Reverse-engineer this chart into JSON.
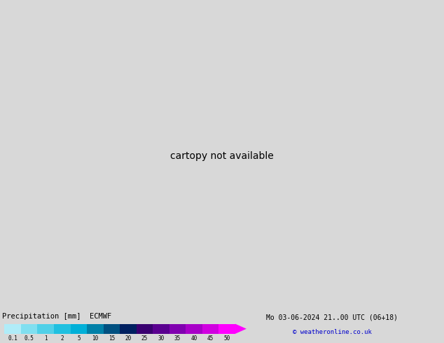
{
  "title": "Precipitation [mm]  ECMWF",
  "date_label": "Mo 03-06-2024 21..00 UTC (06+18)",
  "copyright": "© weatheronline.co.uk",
  "colorbar_labels": [
    "0.1",
    "0.5",
    "1",
    "2",
    "5",
    "10",
    "15",
    "20",
    "25",
    "30",
    "35",
    "40",
    "45",
    "50"
  ],
  "colorbar_colors": [
    "#b0ecf8",
    "#80dff0",
    "#50d0e8",
    "#20c0e0",
    "#00b0d8",
    "#0080a8",
    "#005080",
    "#002060",
    "#3a0070",
    "#5a0090",
    "#8000b0",
    "#a800c8",
    "#d000e0",
    "#ff00ff"
  ],
  "land_color": "#e8e8e0",
  "sea_color": "#d8d8d8",
  "ocean_color": "#d0ecf8",
  "green_land_color": "#c8f0b0",
  "coastline_color": "#888888",
  "bg_color": "#d8d8d8",
  "fig_width": 6.34,
  "fig_height": 4.9,
  "extent": [
    -15.0,
    12.0,
    46.0,
    63.0
  ],
  "prec_cyan_light": "#c0f0ff",
  "prec_cyan_med": "#80e0f0",
  "prec_cyan_dark": "#40c8e0",
  "prec_green": "#b0f0a0"
}
